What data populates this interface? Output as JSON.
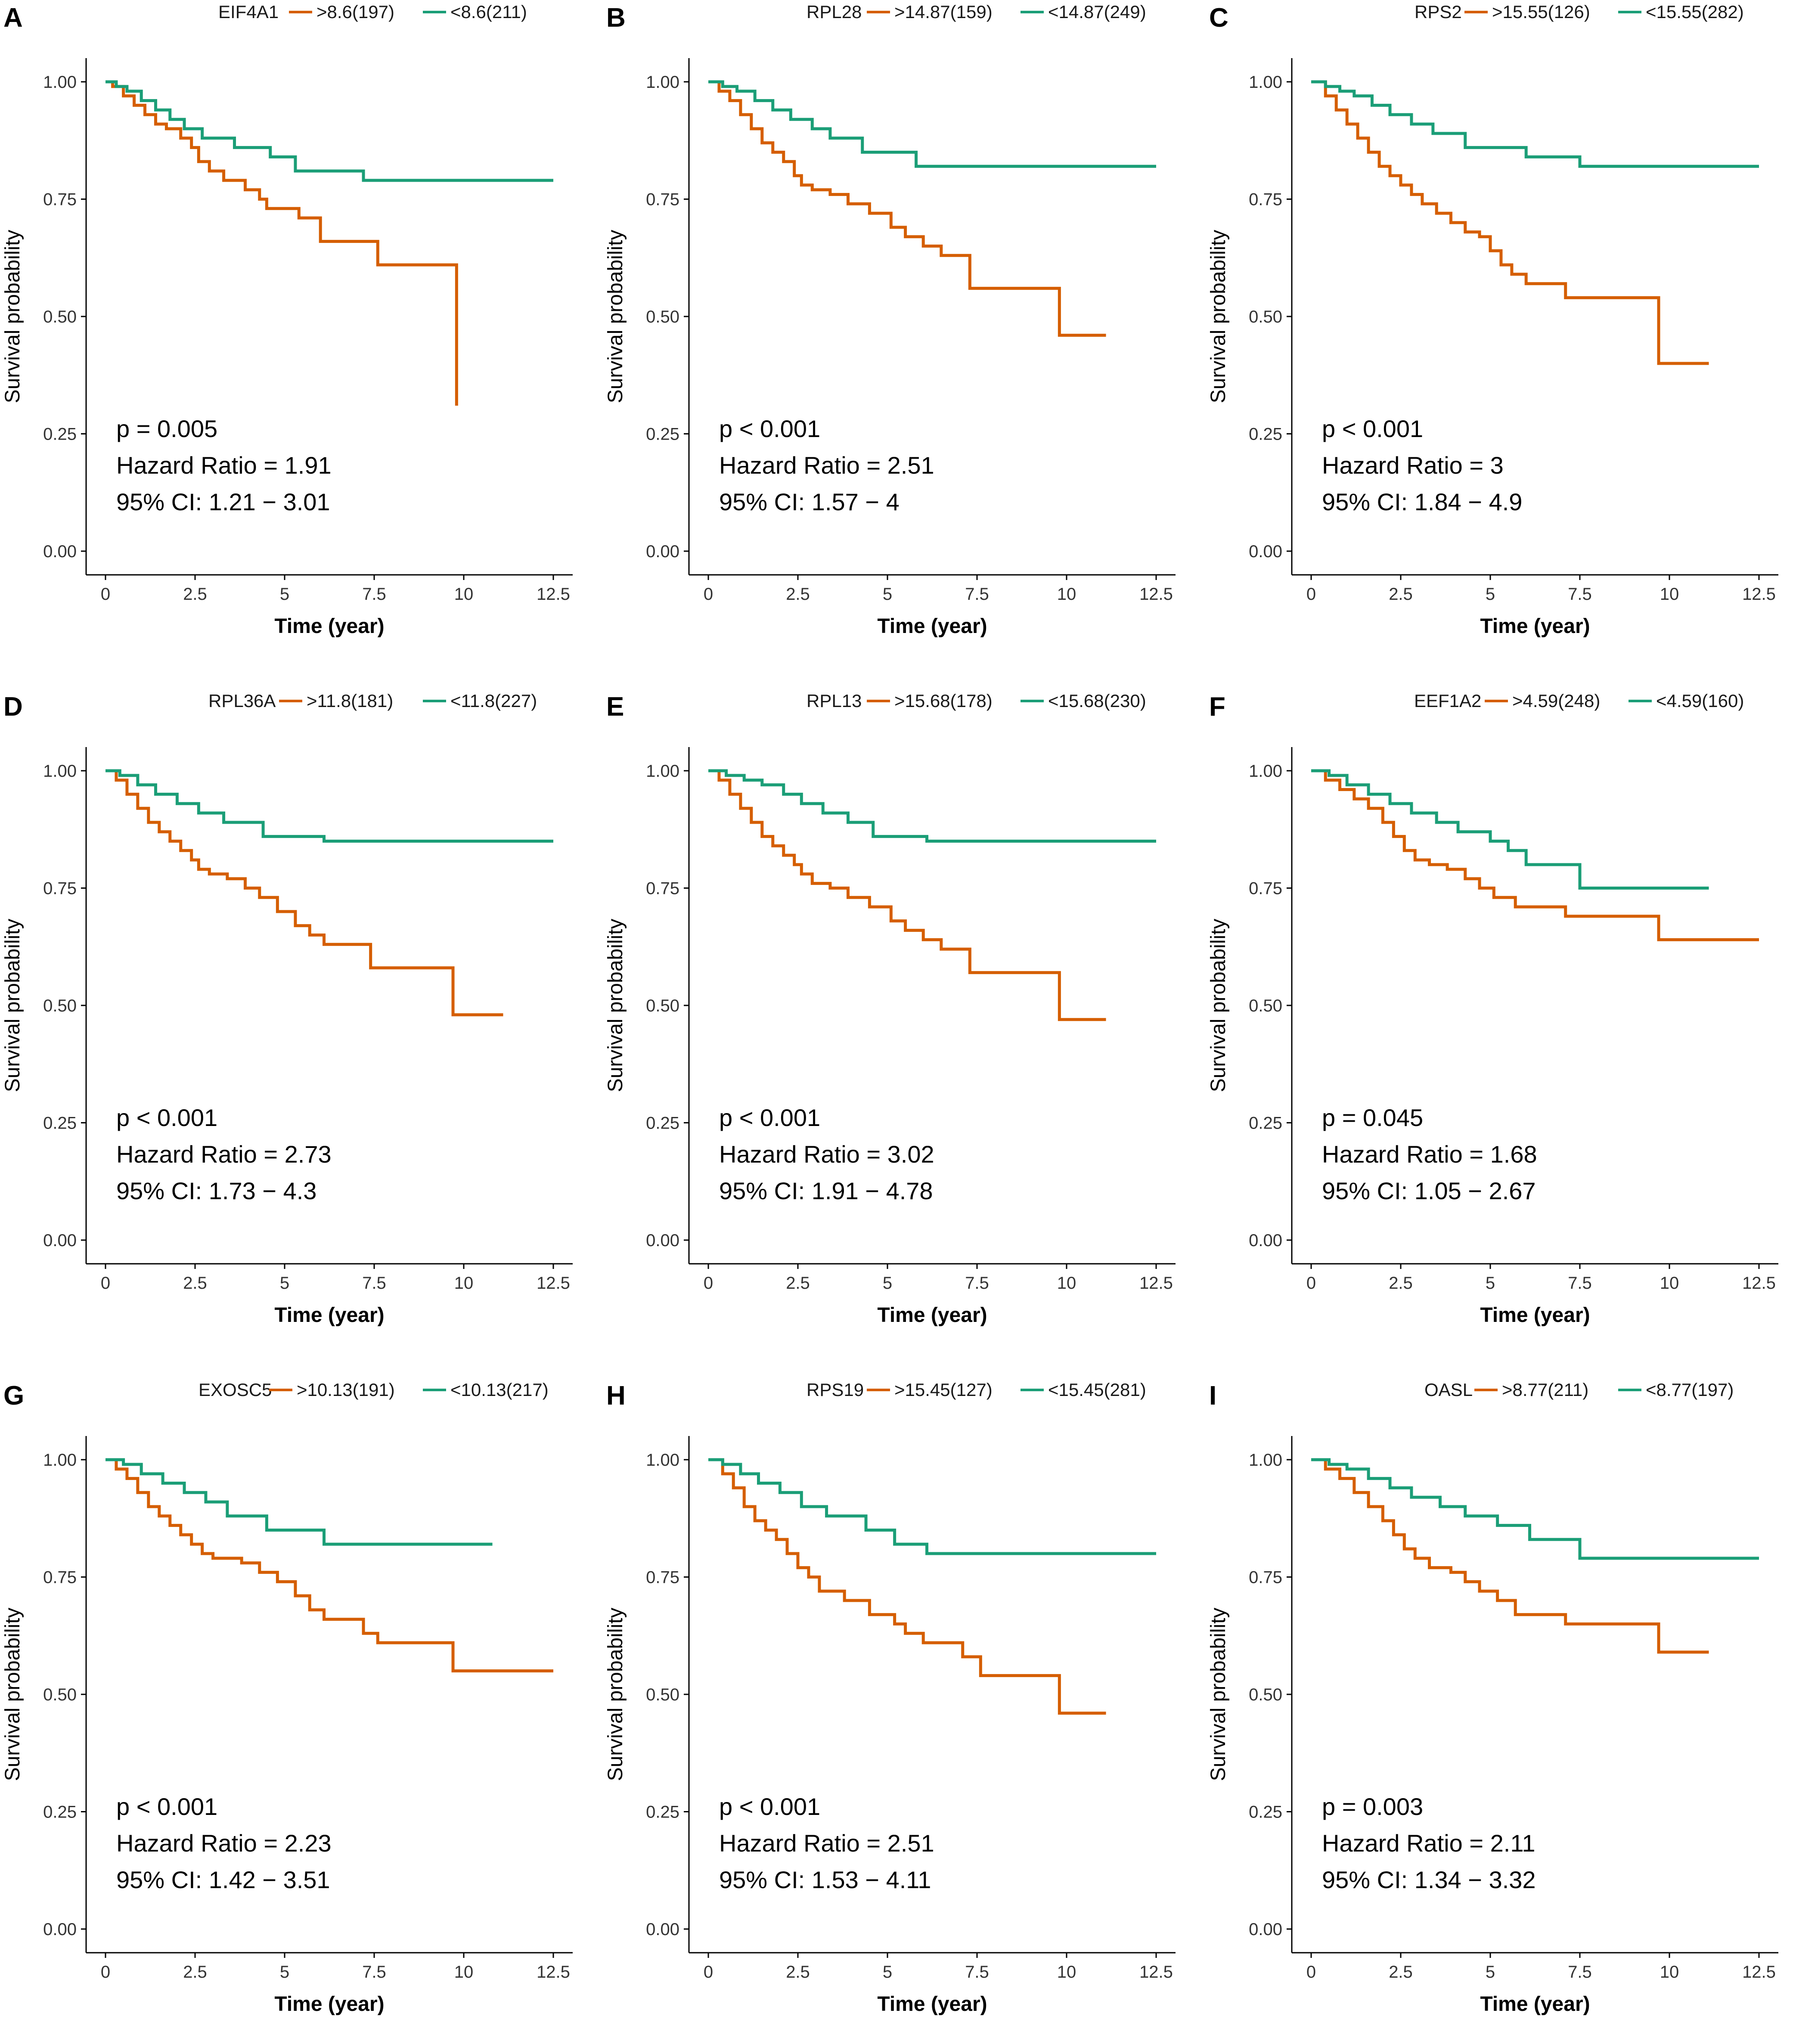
{
  "figure": {
    "colors": {
      "high": "#D55E00",
      "low": "#1B9E77",
      "axis": "#000000",
      "tick_text": "#333333"
    },
    "x_ticks": [
      "0",
      "2.5",
      "5",
      "7.5",
      "10",
      "12.5"
    ],
    "y_ticks": [
      "0.00",
      "0.25",
      "0.50",
      "0.75",
      "1.00"
    ]
  },
  "chart_data": [
    {
      "panel": "A",
      "type": "line",
      "title": "EIF4A1",
      "xlabel": "Time (year)",
      "ylabel": "Survival probability",
      "xlim": [
        0,
        12.5
      ],
      "ylim": [
        0,
        1
      ],
      "stats": {
        "p": "p = 0.005",
        "hr": "Hazard Ratio = 1.91",
        "ci": "95% CI: 1.21 − 3.01"
      },
      "series": [
        {
          "name": ">8.6(197)",
          "group": "high",
          "x": [
            0,
            0.2,
            0.5,
            0.8,
            1.1,
            1.4,
            1.7,
            2.1,
            2.4,
            2.6,
            2.9,
            3.3,
            3.9,
            4.3,
            4.5,
            5.4,
            6.0,
            7.6,
            9.8,
            9.8
          ],
          "y": [
            1.0,
            0.99,
            0.97,
            0.95,
            0.93,
            0.91,
            0.9,
            0.88,
            0.86,
            0.83,
            0.81,
            0.79,
            0.77,
            0.75,
            0.73,
            0.71,
            0.66,
            0.61,
            0.61,
            0.31
          ]
        },
        {
          "name": "<8.6(211)",
          "group": "low",
          "x": [
            0,
            0.3,
            0.6,
            1.0,
            1.4,
            1.8,
            2.2,
            2.7,
            3.6,
            4.6,
            5.3,
            7.2,
            12.5
          ],
          "y": [
            1.0,
            0.99,
            0.98,
            0.96,
            0.94,
            0.92,
            0.9,
            0.88,
            0.86,
            0.84,
            0.81,
            0.79,
            0.79
          ]
        }
      ]
    },
    {
      "panel": "B",
      "type": "line",
      "title": "RPL28",
      "xlabel": "Time (year)",
      "ylabel": "Survival probability",
      "xlim": [
        0,
        12.5
      ],
      "ylim": [
        0,
        1
      ],
      "stats": {
        "p": "p < 0.001",
        "hr": "Hazard Ratio = 2.51",
        "ci": "95% CI: 1.57 − 4"
      },
      "series": [
        {
          "name": ">14.87(159)",
          "group": "high",
          "x": [
            0,
            0.3,
            0.6,
            0.9,
            1.2,
            1.5,
            1.8,
            2.1,
            2.4,
            2.6,
            2.9,
            3.4,
            3.9,
            4.5,
            5.1,
            5.5,
            6.0,
            6.5,
            7.3,
            9.8,
            11.1
          ],
          "y": [
            1.0,
            0.98,
            0.96,
            0.93,
            0.9,
            0.87,
            0.85,
            0.83,
            0.8,
            0.78,
            0.77,
            0.76,
            0.74,
            0.72,
            0.69,
            0.67,
            0.65,
            0.63,
            0.56,
            0.46,
            0.46
          ]
        },
        {
          "name": "<14.87(249)",
          "group": "low",
          "x": [
            0,
            0.4,
            0.8,
            1.3,
            1.8,
            2.3,
            2.9,
            3.4,
            4.3,
            5.8,
            12.5
          ],
          "y": [
            1.0,
            0.99,
            0.98,
            0.96,
            0.94,
            0.92,
            0.9,
            0.88,
            0.85,
            0.82,
            0.82
          ]
        }
      ]
    },
    {
      "panel": "C",
      "type": "line",
      "title": "RPS2",
      "xlabel": "Time (year)",
      "ylabel": "Survival probability",
      "xlim": [
        0,
        12.5
      ],
      "ylim": [
        0,
        1
      ],
      "stats": {
        "p": "p < 0.001",
        "hr": "Hazard Ratio = 3",
        "ci": "95% CI: 1.84 − 4.9"
      },
      "series": [
        {
          "name": ">15.55(126)",
          "group": "high",
          "x": [
            0,
            0.4,
            0.7,
            1.0,
            1.3,
            1.6,
            1.9,
            2.2,
            2.5,
            2.8,
            3.1,
            3.5,
            3.9,
            4.3,
            4.7,
            5.0,
            5.3,
            5.6,
            6.0,
            7.1,
            9.7,
            11.1
          ],
          "y": [
            1.0,
            0.97,
            0.94,
            0.91,
            0.88,
            0.85,
            0.82,
            0.8,
            0.78,
            0.76,
            0.74,
            0.72,
            0.7,
            0.68,
            0.67,
            0.64,
            0.61,
            0.59,
            0.57,
            0.54,
            0.4,
            0.4
          ]
        },
        {
          "name": "<15.55(282)",
          "group": "low",
          "x": [
            0,
            0.4,
            0.8,
            1.2,
            1.7,
            2.2,
            2.8,
            3.4,
            4.3,
            6.0,
            7.5,
            12.5
          ],
          "y": [
            1.0,
            0.99,
            0.98,
            0.97,
            0.95,
            0.93,
            0.91,
            0.89,
            0.86,
            0.84,
            0.82,
            0.82
          ]
        }
      ]
    },
    {
      "panel": "D",
      "type": "line",
      "title": "RPL36A",
      "xlabel": "Time (year)",
      "ylabel": "Survival probability",
      "xlim": [
        0,
        12.5
      ],
      "ylim": [
        0,
        1
      ],
      "stats": {
        "p": "p < 0.001",
        "hr": "Hazard Ratio = 2.73",
        "ci": "95% CI: 1.73 − 4.3"
      },
      "series": [
        {
          "name": ">11.8(181)",
          "group": "high",
          "x": [
            0,
            0.3,
            0.6,
            0.9,
            1.2,
            1.5,
            1.8,
            2.1,
            2.4,
            2.6,
            2.9,
            3.4,
            3.9,
            4.3,
            4.8,
            5.3,
            5.7,
            6.1,
            7.4,
            9.7,
            11.1
          ],
          "y": [
            1.0,
            0.98,
            0.95,
            0.92,
            0.89,
            0.87,
            0.85,
            0.83,
            0.81,
            0.79,
            0.78,
            0.77,
            0.75,
            0.73,
            0.7,
            0.67,
            0.65,
            0.63,
            0.58,
            0.48,
            0.48
          ]
        },
        {
          "name": "<11.8(227)",
          "group": "low",
          "x": [
            0,
            0.4,
            0.9,
            1.4,
            2.0,
            2.6,
            3.3,
            4.4,
            6.1,
            12.5
          ],
          "y": [
            1.0,
            0.99,
            0.97,
            0.95,
            0.93,
            0.91,
            0.89,
            0.86,
            0.85,
            0.85
          ]
        }
      ]
    },
    {
      "panel": "E",
      "type": "line",
      "title": "RPL13",
      "xlabel": "Time (year)",
      "ylabel": "Survival probability",
      "xlim": [
        0,
        12.5
      ],
      "ylim": [
        0,
        1
      ],
      "stats": {
        "p": "p < 0.001",
        "hr": "Hazard Ratio = 3.02",
        "ci": "95% CI: 1.91 − 4.78"
      },
      "series": [
        {
          "name": ">15.68(178)",
          "group": "high",
          "x": [
            0,
            0.3,
            0.6,
            0.9,
            1.2,
            1.5,
            1.8,
            2.1,
            2.4,
            2.6,
            2.9,
            3.4,
            3.9,
            4.5,
            5.1,
            5.5,
            6.0,
            6.5,
            7.3,
            9.8,
            11.1
          ],
          "y": [
            1.0,
            0.98,
            0.95,
            0.92,
            0.89,
            0.86,
            0.84,
            0.82,
            0.8,
            0.78,
            0.76,
            0.75,
            0.73,
            0.71,
            0.68,
            0.66,
            0.64,
            0.62,
            0.57,
            0.47,
            0.47
          ]
        },
        {
          "name": "<15.68(230)",
          "group": "low",
          "x": [
            0,
            0.5,
            1.0,
            1.5,
            2.1,
            2.6,
            3.2,
            3.9,
            4.6,
            6.1,
            12.5
          ],
          "y": [
            1.0,
            0.99,
            0.98,
            0.97,
            0.95,
            0.93,
            0.91,
            0.89,
            0.86,
            0.85,
            0.85
          ]
        }
      ]
    },
    {
      "panel": "F",
      "type": "line",
      "title": "EEF1A2",
      "xlabel": "Time (year)",
      "ylabel": "Survival probability",
      "xlim": [
        0,
        12.5
      ],
      "ylim": [
        0,
        1
      ],
      "stats": {
        "p": "p = 0.045",
        "hr": "Hazard Ratio = 1.68",
        "ci": "95% CI: 1.05 − 2.67"
      },
      "series": [
        {
          "name": ">4.59(248)",
          "group": "high",
          "x": [
            0,
            0.4,
            0.8,
            1.2,
            1.6,
            2.0,
            2.3,
            2.6,
            2.9,
            3.3,
            3.8,
            4.3,
            4.7,
            5.1,
            5.7,
            7.1,
            9.7,
            12.5
          ],
          "y": [
            1.0,
            0.98,
            0.96,
            0.94,
            0.92,
            0.89,
            0.86,
            0.83,
            0.81,
            0.8,
            0.79,
            0.77,
            0.75,
            0.73,
            0.71,
            0.69,
            0.64,
            0.64
          ]
        },
        {
          "name": "<4.59(160)",
          "group": "low",
          "x": [
            0,
            0.5,
            1.0,
            1.6,
            2.2,
            2.8,
            3.5,
            4.1,
            5.0,
            5.5,
            6.0,
            7.5,
            11.1
          ],
          "y": [
            1.0,
            0.99,
            0.97,
            0.95,
            0.93,
            0.91,
            0.89,
            0.87,
            0.85,
            0.83,
            0.8,
            0.75,
            0.75
          ]
        }
      ]
    },
    {
      "panel": "G",
      "type": "line",
      "title": "EXOSC5",
      "xlabel": "Time (year)",
      "ylabel": "Survival probability",
      "xlim": [
        0,
        12.5
      ],
      "ylim": [
        0,
        1
      ],
      "stats": {
        "p": "p < 0.001",
        "hr": "Hazard Ratio = 2.23",
        "ci": "95% CI: 1.42 − 3.51"
      },
      "series": [
        {
          "name": ">10.13(191)",
          "group": "high",
          "x": [
            0,
            0.3,
            0.6,
            0.9,
            1.2,
            1.5,
            1.8,
            2.1,
            2.4,
            2.7,
            3.0,
            3.8,
            4.3,
            4.8,
            5.3,
            5.7,
            6.1,
            7.2,
            7.6,
            9.7,
            12.5
          ],
          "y": [
            1.0,
            0.98,
            0.96,
            0.93,
            0.9,
            0.88,
            0.86,
            0.84,
            0.82,
            0.8,
            0.79,
            0.78,
            0.76,
            0.74,
            0.71,
            0.68,
            0.66,
            0.63,
            0.61,
            0.55,
            0.55
          ]
        },
        {
          "name": "<10.13(217)",
          "group": "low",
          "x": [
            0,
            0.5,
            1.0,
            1.6,
            2.2,
            2.8,
            3.4,
            4.5,
            6.1,
            10.8
          ],
          "y": [
            1.0,
            0.99,
            0.97,
            0.95,
            0.93,
            0.91,
            0.88,
            0.85,
            0.82,
            0.82
          ]
        }
      ]
    },
    {
      "panel": "H",
      "type": "line",
      "title": "RPS19",
      "xlabel": "Time (year)",
      "ylabel": "Survival probability",
      "xlim": [
        0,
        12.5
      ],
      "ylim": [
        0,
        1
      ],
      "stats": {
        "p": "p < 0.001",
        "hr": "Hazard Ratio = 2.51",
        "ci": "95% CI: 1.53 − 4.11"
      },
      "series": [
        {
          "name": ">15.45(127)",
          "group": "high",
          "x": [
            0,
            0.4,
            0.7,
            1.0,
            1.3,
            1.6,
            1.9,
            2.2,
            2.5,
            2.8,
            3.1,
            3.8,
            4.5,
            5.2,
            5.5,
            6.0,
            7.1,
            7.6,
            9.8,
            11.1
          ],
          "y": [
            1.0,
            0.97,
            0.94,
            0.9,
            0.87,
            0.85,
            0.83,
            0.8,
            0.77,
            0.75,
            0.72,
            0.7,
            0.67,
            0.65,
            0.63,
            0.61,
            0.58,
            0.54,
            0.46,
            0.46
          ]
        },
        {
          "name": "<15.45(281)",
          "group": "low",
          "x": [
            0,
            0.4,
            0.9,
            1.4,
            2.0,
            2.6,
            3.3,
            4.4,
            5.2,
            6.1,
            12.5
          ],
          "y": [
            1.0,
            0.99,
            0.97,
            0.95,
            0.93,
            0.9,
            0.88,
            0.85,
            0.82,
            0.8,
            0.8
          ]
        }
      ]
    },
    {
      "panel": "I",
      "type": "line",
      "title": "OASL",
      "xlabel": "Time (year)",
      "ylabel": "Survival probability",
      "xlim": [
        0,
        12.5
      ],
      "ylim": [
        0,
        1
      ],
      "stats": {
        "p": "p = 0.003",
        "hr": "Hazard Ratio = 2.11",
        "ci": "95% CI: 1.34 − 3.32"
      },
      "series": [
        {
          "name": ">8.77(211)",
          "group": "high",
          "x": [
            0,
            0.4,
            0.8,
            1.2,
            1.6,
            2.0,
            2.3,
            2.6,
            2.9,
            3.3,
            3.9,
            4.3,
            4.7,
            5.2,
            5.7,
            7.1,
            9.7,
            11.1
          ],
          "y": [
            1.0,
            0.98,
            0.96,
            0.93,
            0.9,
            0.87,
            0.84,
            0.81,
            0.79,
            0.77,
            0.76,
            0.74,
            0.72,
            0.7,
            0.67,
            0.65,
            0.59,
            0.59
          ]
        },
        {
          "name": "<8.77(197)",
          "group": "low",
          "x": [
            0,
            0.5,
            1.0,
            1.6,
            2.2,
            2.8,
            3.6,
            4.3,
            5.2,
            6.1,
            7.5,
            12.5
          ],
          "y": [
            1.0,
            0.99,
            0.98,
            0.96,
            0.94,
            0.92,
            0.9,
            0.88,
            0.86,
            0.83,
            0.79,
            0.79
          ]
        }
      ]
    }
  ]
}
